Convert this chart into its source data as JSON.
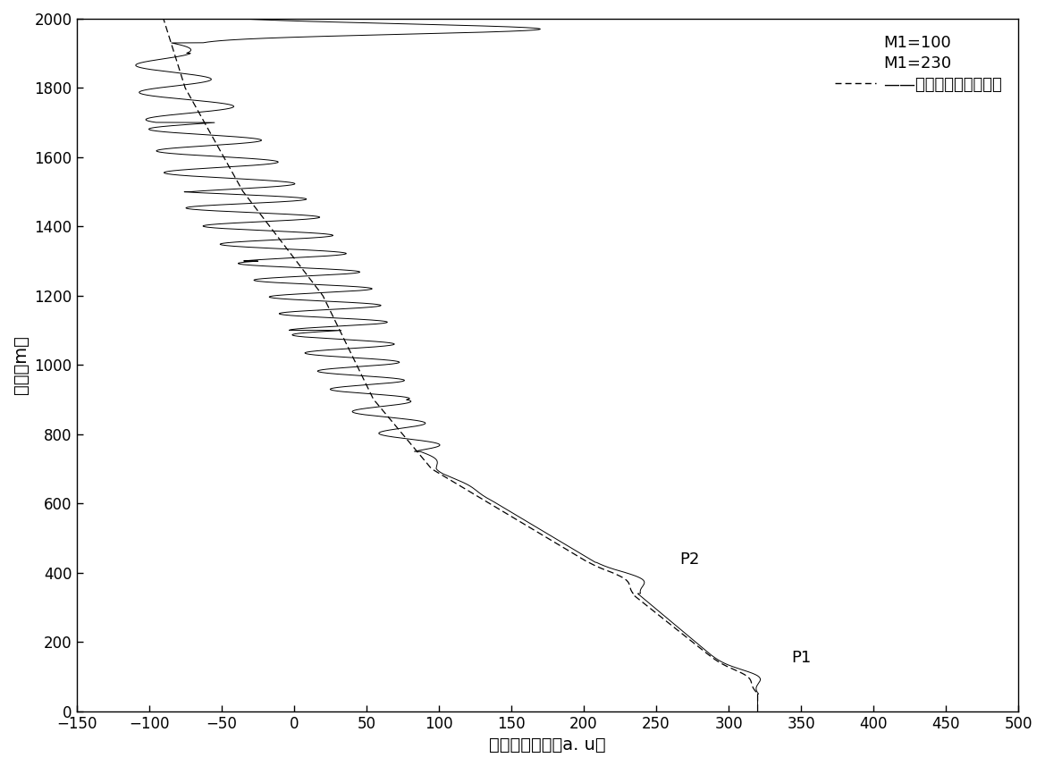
{
  "title": "",
  "xlabel": "后向散射系数（a. u）",
  "ylabel": "高度（m）",
  "xlim": [
    -150,
    500
  ],
  "ylim": [
    0,
    2000
  ],
  "xticks": [
    -150,
    -100,
    -50,
    0,
    50,
    100,
    150,
    200,
    250,
    300,
    350,
    400,
    450,
    500
  ],
  "yticks": [
    0,
    200,
    400,
    600,
    800,
    1000,
    1200,
    1400,
    1600,
    1800,
    2000
  ],
  "background_color": "#ffffff",
  "line_color": "#000000",
  "P1_label": "P1",
  "P2_label": "P2",
  "P1_x": 335,
  "P1_y": 100,
  "P2_x": 258,
  "P2_y": 390,
  "legend_text_1": "M1=100",
  "legend_text_2": "M1=230",
  "legend_text_3": "——激光雷达信号廓线图"
}
